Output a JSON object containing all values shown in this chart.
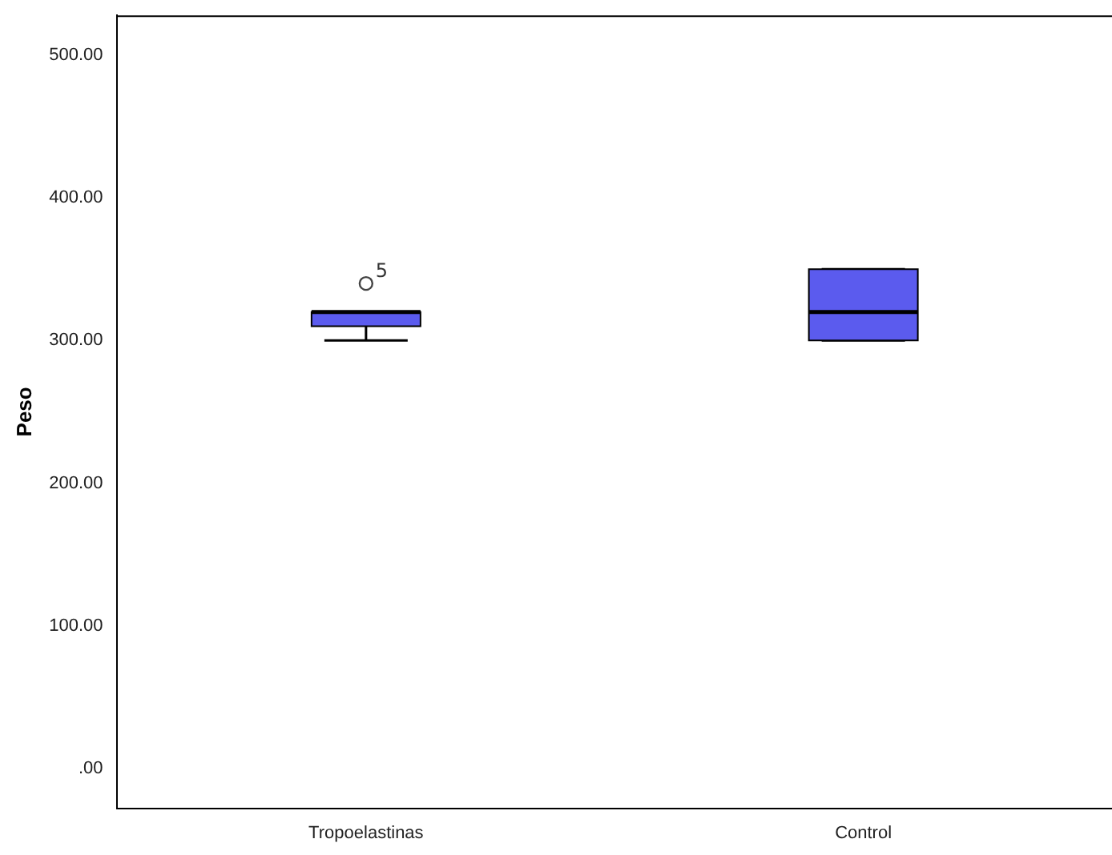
{
  "chart_data": {
    "type": "box",
    "ylabel": "Peso",
    "categories": [
      "Tropoelastinas",
      "Control"
    ],
    "color": "#5b5bee",
    "boxes": [
      {
        "low": 300,
        "q1": 310,
        "median": 320,
        "q3": 320,
        "high": 320,
        "outliers": [
          340
        ]
      },
      {
        "low": 300,
        "q1": 300,
        "median": 320,
        "q3": 350,
        "high": 350
      }
    ],
    "ylim": [
      -28,
      528
    ],
    "yticks": [
      {
        "value": 0,
        "label": ".00"
      },
      {
        "value": 100,
        "label": "100.00"
      },
      {
        "value": 200,
        "label": "200.00"
      },
      {
        "value": 300,
        "label": "300.00"
      },
      {
        "value": 400,
        "label": "400.00"
      },
      {
        "value": 500,
        "label": "500.00"
      }
    ],
    "annotations": [
      "5"
    ],
    "grid": false,
    "legend": false
  }
}
